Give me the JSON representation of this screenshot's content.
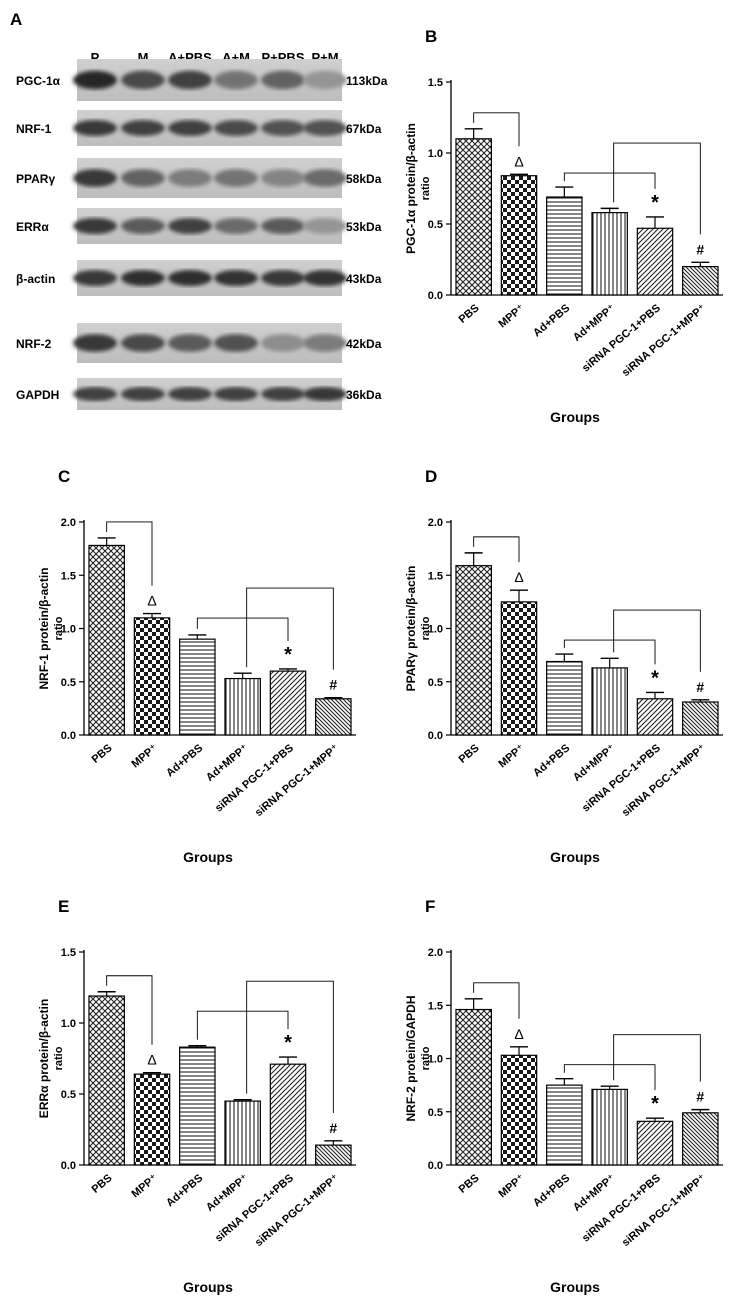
{
  "blot": {
    "panel_label": "A",
    "lanes": [
      "P",
      "M",
      "A+PBS",
      "A+M",
      "P+PBS",
      "P+M"
    ],
    "rows": [
      {
        "protein": "PGC-1α",
        "size": "113kDa",
        "intensity": [
          0.95,
          0.75,
          0.8,
          0.5,
          0.6,
          0.3
        ]
      },
      {
        "protein": "NRF-1",
        "size": "67kDa",
        "intensity": [
          0.85,
          0.8,
          0.8,
          0.75,
          0.7,
          0.7
        ]
      },
      {
        "protein": "PPARγ",
        "size": "58kDa",
        "intensity": [
          0.85,
          0.6,
          0.45,
          0.5,
          0.4,
          0.55
        ]
      },
      {
        "protein": "ERRα",
        "size": "53kDa",
        "intensity": [
          0.85,
          0.65,
          0.8,
          0.55,
          0.65,
          0.3
        ]
      },
      {
        "protein": "β-actin",
        "size": "43kDa",
        "intensity": [
          0.85,
          0.9,
          0.9,
          0.88,
          0.85,
          0.88
        ]
      },
      {
        "protein": "NRF-2",
        "size": "42kDa",
        "intensity": [
          0.85,
          0.75,
          0.65,
          0.7,
          0.35,
          0.45
        ]
      },
      {
        "protein": "GAPDH",
        "size": "36kDa",
        "intensity": [
          0.8,
          0.8,
          0.8,
          0.8,
          0.8,
          0.85
        ]
      }
    ]
  },
  "chart_data": [
    {
      "panel": "B",
      "type": "bar",
      "categories": [
        "PBS",
        "MPP⁺",
        "Ad+PBS",
        "Ad+MPP⁺",
        "siRNA PGC-1+PBS",
        "siRNA PGC-1+MPP⁺"
      ],
      "values": [
        1.1,
        0.84,
        0.69,
        0.58,
        0.47,
        0.2
      ],
      "errors": [
        0.07,
        0.01,
        0.07,
        0.03,
        0.08,
        0.03
      ],
      "ylabel": [
        "PGC-1α protein/β-actin",
        "ratio"
      ],
      "xlabel": "Groups",
      "ylim": [
        0,
        1.5
      ],
      "yticks": [
        "0.0",
        "0.5",
        "1.0",
        "1.5"
      ],
      "significance": [
        {
          "bar": 1,
          "symbol": "Δ"
        },
        {
          "bar": 4,
          "symbol": "*"
        },
        {
          "bar": 5,
          "symbol": "#"
        }
      ],
      "brackets": [
        [
          0,
          1
        ],
        [
          2,
          4
        ],
        [
          3,
          5
        ]
      ]
    },
    {
      "panel": "C",
      "type": "bar",
      "categories": [
        "PBS",
        "MPP⁺",
        "Ad+PBS",
        "Ad+MPP⁺",
        "siRNA PGC-1+PBS",
        "siRNA PGC-1+MPP⁺"
      ],
      "values": [
        1.78,
        1.1,
        0.9,
        0.53,
        0.6,
        0.34
      ],
      "errors": [
        0.07,
        0.04,
        0.04,
        0.05,
        0.02,
        0.01
      ],
      "ylabel": [
        "NRF-1 protein/β-actin",
        "ratio"
      ],
      "xlabel": "Groups",
      "ylim": [
        0,
        2.0
      ],
      "yticks": [
        "0.0",
        "0.5",
        "1.0",
        "1.5",
        "2.0"
      ],
      "significance": [
        {
          "bar": 1,
          "symbol": "Δ"
        },
        {
          "bar": 4,
          "symbol": "*"
        },
        {
          "bar": 5,
          "symbol": "#"
        }
      ],
      "brackets": [
        [
          0,
          1
        ],
        [
          2,
          4
        ],
        [
          3,
          5
        ]
      ]
    },
    {
      "panel": "D",
      "type": "bar",
      "categories": [
        "PBS",
        "MPP⁺",
        "Ad+PBS",
        "Ad+MPP⁺",
        "siRNA PGC-1+PBS",
        "siRNA PGC-1+MPP⁺"
      ],
      "values": [
        1.59,
        1.25,
        0.69,
        0.63,
        0.34,
        0.31
      ],
      "errors": [
        0.12,
        0.11,
        0.07,
        0.09,
        0.06,
        0.02
      ],
      "ylabel": [
        "PPARγ protein/β-actin",
        "ratio"
      ],
      "xlabel": "Groups",
      "ylim": [
        0,
        2.0
      ],
      "yticks": [
        "0.0",
        "0.5",
        "1.0",
        "1.5",
        "2.0"
      ],
      "significance": [
        {
          "bar": 1,
          "symbol": "Δ"
        },
        {
          "bar": 4,
          "symbol": "*"
        },
        {
          "bar": 5,
          "symbol": "#"
        }
      ],
      "brackets": [
        [
          0,
          1
        ],
        [
          2,
          4
        ],
        [
          3,
          5
        ]
      ]
    },
    {
      "panel": "E",
      "type": "bar",
      "categories": [
        "PBS",
        "MPP⁺",
        "Ad+PBS",
        "Ad+MPP⁺",
        "siRNA PGC-1+PBS",
        "siRNA PGC-1+MPP⁺"
      ],
      "values": [
        1.19,
        0.64,
        0.83,
        0.45,
        0.71,
        0.14
      ],
      "errors": [
        0.03,
        0.01,
        0.01,
        0.01,
        0.05,
        0.03
      ],
      "ylabel": [
        "ERRα protein/β-actin",
        "ratio"
      ],
      "xlabel": "Groups",
      "ylim": [
        0,
        1.5
      ],
      "yticks": [
        "0.0",
        "0.5",
        "1.0",
        "1.5"
      ],
      "significance": [
        {
          "bar": 1,
          "symbol": "Δ"
        },
        {
          "bar": 4,
          "symbol": "*"
        },
        {
          "bar": 5,
          "symbol": "#"
        }
      ],
      "brackets": [
        [
          0,
          1
        ],
        [
          2,
          4
        ],
        [
          3,
          5
        ]
      ]
    },
    {
      "panel": "F",
      "type": "bar",
      "categories": [
        "PBS",
        "MPP⁺",
        "Ad+PBS",
        "Ad+MPP⁺",
        "siRNA PGC-1+PBS",
        "siRNA PGC-1+MPP⁺"
      ],
      "values": [
        1.46,
        1.03,
        0.75,
        0.71,
        0.41,
        0.49
      ],
      "errors": [
        0.1,
        0.08,
        0.06,
        0.03,
        0.03,
        0.03
      ],
      "ylabel": [
        "NRF-2 protein/GAPDH",
        "ratio"
      ],
      "xlabel": "Groups",
      "ylim": [
        0,
        2.0
      ],
      "yticks": [
        "0.0",
        "0.5",
        "1.0",
        "1.5",
        "2.0"
      ],
      "significance": [
        {
          "bar": 1,
          "symbol": "Δ"
        },
        {
          "bar": 4,
          "symbol": "*"
        },
        {
          "bar": 5,
          "symbol": "#"
        }
      ],
      "brackets": [
        [
          0,
          1
        ],
        [
          2,
          4
        ],
        [
          3,
          5
        ]
      ]
    }
  ]
}
